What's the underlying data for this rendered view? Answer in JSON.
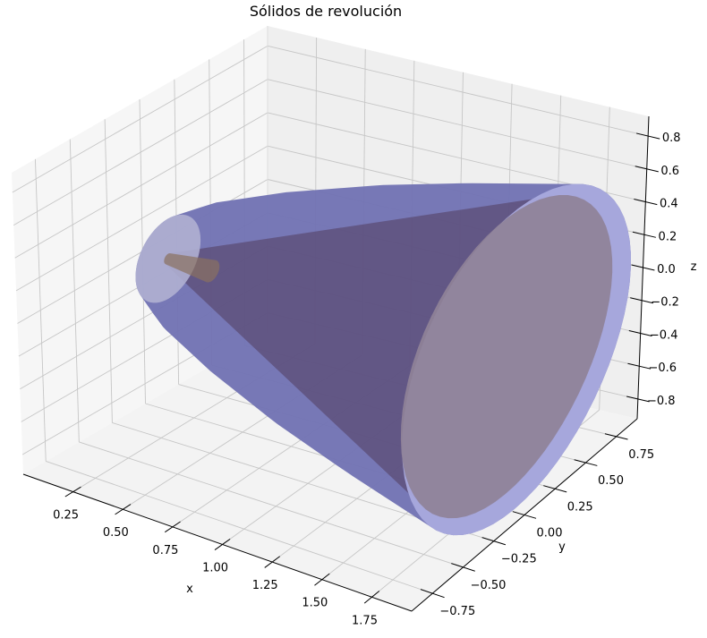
{
  "chart_data": {
    "type": "surface3d",
    "title": "Sólidos de revolución",
    "xlabel": "x",
    "ylabel": "y",
    "zlabel": "z",
    "xlim": [
      0.0,
      1.95
    ],
    "ylim": [
      -0.92,
      0.92
    ],
    "zlim": [
      -0.92,
      0.92
    ],
    "grid": true,
    "xticks": [
      0.25,
      0.5,
      0.75,
      1.0,
      1.25,
      1.5,
      1.75
    ],
    "xtick_labels": [
      "0.25",
      "0.50",
      "0.75",
      "1.00",
      "1.25",
      "1.50",
      "1.75"
    ],
    "yticks": [
      -0.75,
      -0.5,
      -0.25,
      0.0,
      0.25,
      0.5,
      0.75
    ],
    "ytick_labels": [
      "−0.75",
      "−0.50",
      "−0.25",
      "0.00",
      "0.25",
      "0.50",
      "0.75"
    ],
    "zticks": [
      -0.8,
      -0.6,
      -0.4,
      -0.2,
      0.0,
      0.2,
      0.4,
      0.6,
      0.8
    ],
    "ztick_labels": [
      "−0.8",
      "−0.6",
      "−0.4",
      "−0.2",
      "0.0",
      "0.2",
      "0.4",
      "0.6",
      "0.8"
    ],
    "surfaces": [
      {
        "kind": "solid of revolution about x-axis",
        "profile_x_r": [
          [
            0.13,
            0.24
          ],
          [
            0.3,
            0.36
          ],
          [
            0.6,
            0.5
          ],
          [
            1.0,
            0.65
          ],
          [
            1.4,
            0.77
          ],
          [
            1.9,
            0.9
          ]
        ],
        "color": "#7374b4",
        "end_disc_color": "#a9aade",
        "start_disc_color": "#b0b0d2"
      },
      {
        "kind": "cone of revolution about x-axis",
        "profile_x_r": [
          [
            0.13,
            0.03
          ],
          [
            1.85,
            0.83
          ]
        ],
        "color": "#4a2e4a",
        "end_disc_color": "#8f8298",
        "tip_color": "#8a7060"
      }
    ]
  }
}
